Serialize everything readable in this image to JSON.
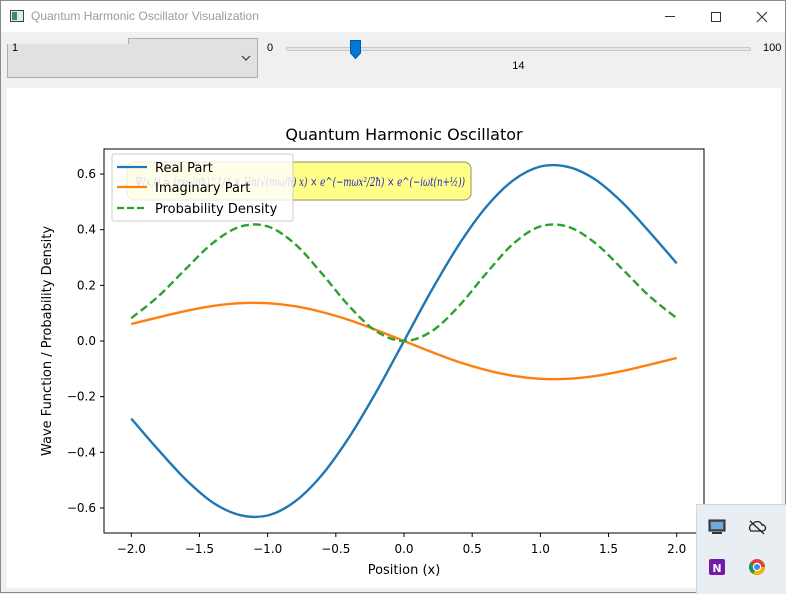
{
  "window": {
    "title": "Quantum Harmonic Oscillator Visualization",
    "icon": "app-window-icon",
    "controls": [
      "minimize-icon",
      "maximize-icon",
      "close-icon"
    ]
  },
  "toolbar": {
    "combo_value": "1",
    "slider": {
      "min_label": "0",
      "max_label": "100",
      "value": 14,
      "value_label": "14",
      "min": 0,
      "max": 100,
      "accent": "#0078d7"
    }
  },
  "plot": {
    "title": "Quantum Harmonic Oscillator",
    "xlabel": "Position (x)",
    "ylabel": "Wave Function / Probability Density",
    "x_ticks": [
      "−2.0",
      "−1.5",
      "−1.0",
      "−0.5",
      "0.0",
      "0.5",
      "1.0",
      "1.5",
      "2.0"
    ],
    "y_ticks": [
      "−0.6",
      "−0.4",
      "−0.2",
      "0.0",
      "0.2",
      "0.4",
      "0.6"
    ],
    "legend": [
      "Real Part",
      "Imaginary Part",
      "Probability Density"
    ],
    "formula": "Ψ(x,t) = (mω/πħ)^1/4 × Hn(√(mω/ħ) x) × e^(−mωx²/2ħ) × e^(−iωt(n+½))"
  },
  "chart_data": {
    "type": "line",
    "title": "Quantum Harmonic Oscillator",
    "xlabel": "Position (x)",
    "ylabel": "Wave Function / Probability Density",
    "xlim": [
      -2.2,
      2.2
    ],
    "ylim": [
      -0.69,
      0.69
    ],
    "grid": false,
    "legend_position": "top-left",
    "x": [
      -2.0,
      -1.8,
      -1.6,
      -1.4,
      -1.2,
      -1.0,
      -0.8,
      -0.6,
      -0.4,
      -0.2,
      0.0,
      0.2,
      0.4,
      0.6,
      0.8,
      1.0,
      1.2,
      1.4,
      1.6,
      1.8,
      2.0
    ],
    "series": [
      {
        "name": "Real Part",
        "color": "#1f77b4",
        "style": "solid",
        "values": [
          -0.279,
          -0.392,
          -0.498,
          -0.581,
          -0.626,
          -0.627,
          -0.577,
          -0.48,
          -0.344,
          -0.18,
          0.0,
          0.18,
          0.344,
          0.48,
          0.577,
          0.627,
          0.626,
          0.581,
          0.498,
          0.392,
          0.279
        ]
      },
      {
        "name": "Imaginary Part",
        "color": "#ff7f0e",
        "style": "solid",
        "values": [
          0.061,
          0.085,
          0.108,
          0.126,
          0.136,
          0.136,
          0.125,
          0.104,
          0.075,
          0.039,
          0.0,
          -0.039,
          -0.075,
          -0.104,
          -0.125,
          -0.136,
          -0.136,
          -0.126,
          -0.108,
          -0.085,
          -0.061
        ]
      },
      {
        "name": "Probability Density",
        "color": "#2ca02c",
        "style": "dashed",
        "values": [
          0.082,
          0.161,
          0.259,
          0.353,
          0.411,
          0.412,
          0.349,
          0.241,
          0.124,
          0.034,
          0.0,
          0.034,
          0.124,
          0.241,
          0.349,
          0.412,
          0.411,
          0.353,
          0.259,
          0.161,
          0.082
        ]
      }
    ]
  },
  "tray": {
    "icons": [
      "display-settings-icon",
      "onedrive-offline-icon",
      "onenote-icon",
      "chrome-icon"
    ]
  }
}
